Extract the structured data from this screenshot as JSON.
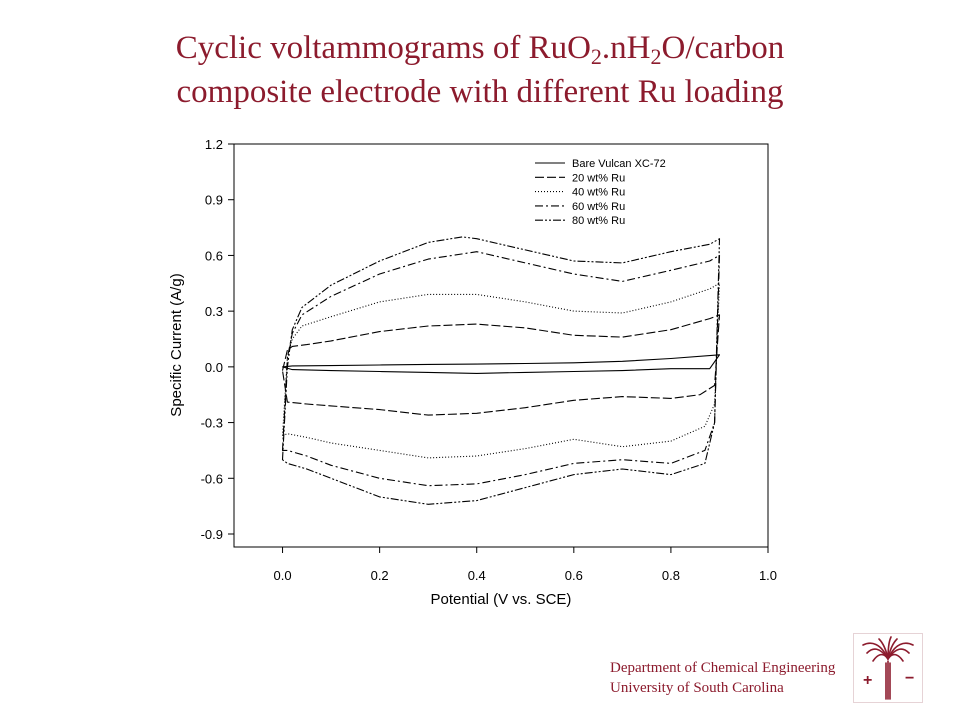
{
  "title": {
    "line1_part1": "Cyclic voltammograms of RuO",
    "line1_sub1": "2",
    "line1_part2": ".nH",
    "line1_sub2": "2",
    "line1_part3": "O/carbon",
    "line2": "composite electrode with different Ru loading"
  },
  "footer": {
    "line1": "Department of Chemical Engineering",
    "line2": "University of South Carolina"
  },
  "logo": {
    "icon": "palmetto-tree-icon",
    "plus": "+",
    "minus": "−"
  },
  "colors": {
    "title": "#8c1b2d",
    "plot": "#000000",
    "logo": "#8c1b2d"
  },
  "chart_data": {
    "type": "line",
    "xlabel": "Potential (V vs. SCE)",
    "ylabel": "Specific Current (A/g)",
    "xlim": [
      -0.1,
      1.0
    ],
    "ylim": [
      -0.97,
      1.2
    ],
    "xticks": [
      "0.0",
      "0.2",
      "0.4",
      "0.6",
      "0.8",
      "1.0"
    ],
    "yticks": [
      "1.2",
      "0.9",
      "0.6",
      "0.3",
      "0.0",
      "-0.3",
      "-0.6",
      "-0.9"
    ],
    "grid": false,
    "legend_position": "top-right",
    "series": [
      {
        "name": "Bare Vulcan XC-72",
        "dash": "solid",
        "anodic": [
          [
            0.0,
            0.0
          ],
          [
            0.02,
            0.005
          ],
          [
            0.1,
            0.007
          ],
          [
            0.2,
            0.01
          ],
          [
            0.3,
            0.013
          ],
          [
            0.4,
            0.015
          ],
          [
            0.5,
            0.018
          ],
          [
            0.6,
            0.022
          ],
          [
            0.7,
            0.03
          ],
          [
            0.8,
            0.045
          ],
          [
            0.9,
            0.065
          ]
        ],
        "cathodic": [
          [
            0.9,
            0.065
          ],
          [
            0.88,
            -0.01
          ],
          [
            0.8,
            -0.01
          ],
          [
            0.7,
            -0.02
          ],
          [
            0.6,
            -0.025
          ],
          [
            0.5,
            -0.03
          ],
          [
            0.4,
            -0.035
          ],
          [
            0.3,
            -0.03
          ],
          [
            0.2,
            -0.025
          ],
          [
            0.1,
            -0.02
          ],
          [
            0.02,
            -0.015
          ],
          [
            0.0,
            0.0
          ]
        ]
      },
      {
        "name": "20 wt% Ru",
        "dash": "long-dash",
        "anodic": [
          [
            0.0,
            -0.02
          ],
          [
            0.01,
            0.09
          ],
          [
            0.02,
            0.11
          ],
          [
            0.05,
            0.12
          ],
          [
            0.1,
            0.14
          ],
          [
            0.2,
            0.19
          ],
          [
            0.3,
            0.22
          ],
          [
            0.4,
            0.23
          ],
          [
            0.5,
            0.21
          ],
          [
            0.6,
            0.17
          ],
          [
            0.7,
            0.16
          ],
          [
            0.8,
            0.2
          ],
          [
            0.88,
            0.26
          ],
          [
            0.9,
            0.28
          ]
        ],
        "cathodic": [
          [
            0.9,
            0.28
          ],
          [
            0.89,
            -0.1
          ],
          [
            0.86,
            -0.15
          ],
          [
            0.8,
            -0.17
          ],
          [
            0.7,
            -0.16
          ],
          [
            0.6,
            -0.18
          ],
          [
            0.5,
            -0.22
          ],
          [
            0.4,
            -0.25
          ],
          [
            0.3,
            -0.26
          ],
          [
            0.2,
            -0.23
          ],
          [
            0.1,
            -0.21
          ],
          [
            0.05,
            -0.2
          ],
          [
            0.01,
            -0.19
          ],
          [
            0.0,
            -0.02
          ]
        ]
      },
      {
        "name": "40 wt% Ru",
        "dash": "dotted",
        "anodic": [
          [
            0.0,
            -0.37
          ],
          [
            0.01,
            0.05
          ],
          [
            0.02,
            0.15
          ],
          [
            0.04,
            0.22
          ],
          [
            0.1,
            0.27
          ],
          [
            0.2,
            0.35
          ],
          [
            0.3,
            0.39
          ],
          [
            0.4,
            0.39
          ],
          [
            0.5,
            0.35
          ],
          [
            0.6,
            0.3
          ],
          [
            0.7,
            0.29
          ],
          [
            0.8,
            0.35
          ],
          [
            0.88,
            0.42
          ],
          [
            0.9,
            0.45
          ]
        ],
        "cathodic": [
          [
            0.9,
            0.45
          ],
          [
            0.89,
            -0.2
          ],
          [
            0.87,
            -0.32
          ],
          [
            0.8,
            -0.4
          ],
          [
            0.7,
            -0.43
          ],
          [
            0.6,
            -0.39
          ],
          [
            0.5,
            -0.44
          ],
          [
            0.4,
            -0.48
          ],
          [
            0.3,
            -0.49
          ],
          [
            0.2,
            -0.45
          ],
          [
            0.1,
            -0.41
          ],
          [
            0.05,
            -0.38
          ],
          [
            0.01,
            -0.36
          ],
          [
            0.0,
            -0.37
          ]
        ]
      },
      {
        "name": "60 wt% Ru",
        "dash": "dash-dot",
        "anodic": [
          [
            0.0,
            -0.45
          ],
          [
            0.01,
            0.05
          ],
          [
            0.02,
            0.18
          ],
          [
            0.04,
            0.28
          ],
          [
            0.1,
            0.38
          ],
          [
            0.2,
            0.5
          ],
          [
            0.3,
            0.58
          ],
          [
            0.4,
            0.62
          ],
          [
            0.5,
            0.56
          ],
          [
            0.6,
            0.5
          ],
          [
            0.7,
            0.46
          ],
          [
            0.8,
            0.52
          ],
          [
            0.88,
            0.57
          ],
          [
            0.9,
            0.6
          ]
        ],
        "cathodic": [
          [
            0.9,
            0.6
          ],
          [
            0.89,
            -0.3
          ],
          [
            0.87,
            -0.45
          ],
          [
            0.8,
            -0.52
          ],
          [
            0.7,
            -0.5
          ],
          [
            0.6,
            -0.52
          ],
          [
            0.5,
            -0.58
          ],
          [
            0.4,
            -0.63
          ],
          [
            0.3,
            -0.64
          ],
          [
            0.2,
            -0.6
          ],
          [
            0.1,
            -0.53
          ],
          [
            0.05,
            -0.48
          ],
          [
            0.01,
            -0.45
          ],
          [
            0.0,
            -0.45
          ]
        ]
      },
      {
        "name": "80 wt% Ru",
        "dash": "dash-dot-dot",
        "anodic": [
          [
            0.0,
            -0.5
          ],
          [
            0.01,
            0.0
          ],
          [
            0.02,
            0.2
          ],
          [
            0.04,
            0.32
          ],
          [
            0.1,
            0.44
          ],
          [
            0.2,
            0.57
          ],
          [
            0.3,
            0.67
          ],
          [
            0.37,
            0.7
          ],
          [
            0.4,
            0.69
          ],
          [
            0.5,
            0.63
          ],
          [
            0.6,
            0.57
          ],
          [
            0.7,
            0.56
          ],
          [
            0.8,
            0.62
          ],
          [
            0.88,
            0.66
          ],
          [
            0.9,
            0.69
          ]
        ],
        "cathodic": [
          [
            0.9,
            0.69
          ],
          [
            0.89,
            -0.3
          ],
          [
            0.87,
            -0.52
          ],
          [
            0.8,
            -0.58
          ],
          [
            0.7,
            -0.55
          ],
          [
            0.6,
            -0.58
          ],
          [
            0.5,
            -0.65
          ],
          [
            0.4,
            -0.72
          ],
          [
            0.3,
            -0.74
          ],
          [
            0.2,
            -0.7
          ],
          [
            0.1,
            -0.6
          ],
          [
            0.05,
            -0.55
          ],
          [
            0.01,
            -0.52
          ],
          [
            0.0,
            -0.5
          ]
        ]
      }
    ]
  }
}
